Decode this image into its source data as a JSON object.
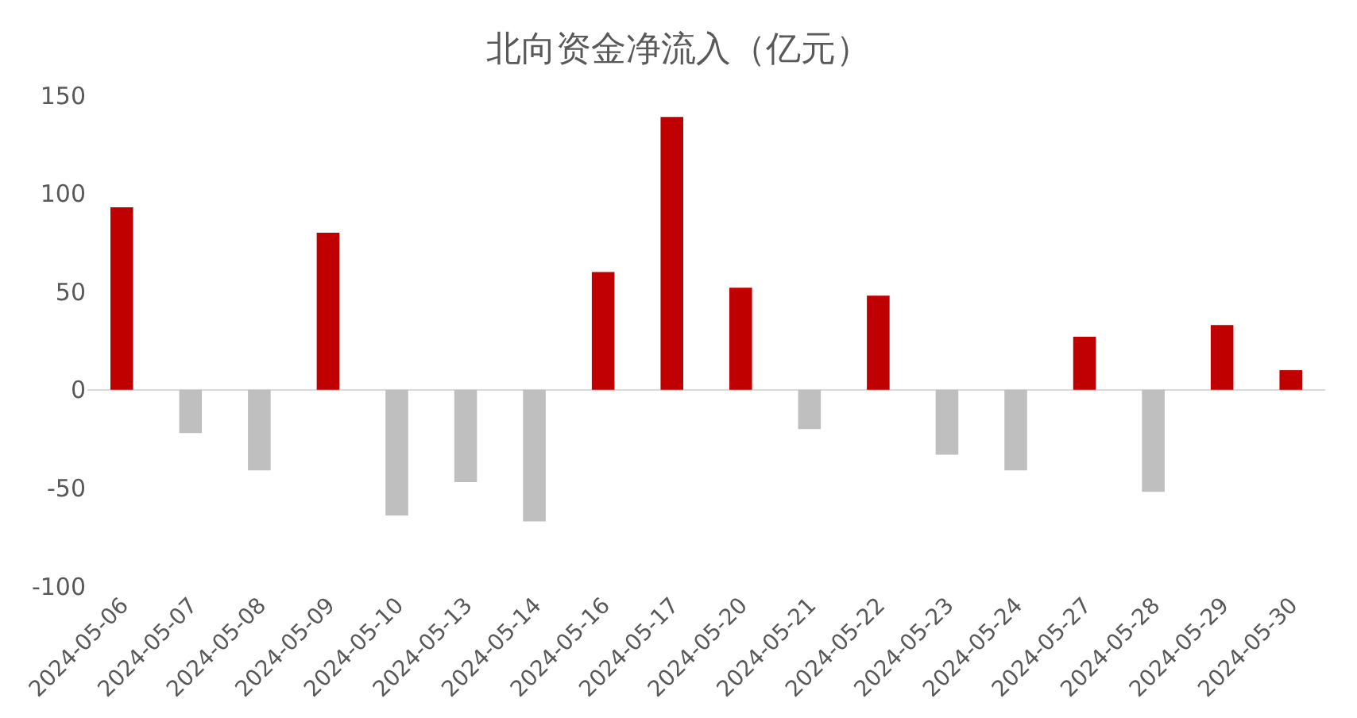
{
  "chart_data": {
    "type": "bar",
    "title": "北向资金净流入（亿元）",
    "categories": [
      "2024-05-06",
      "2024-05-07",
      "2024-05-08",
      "2024-05-09",
      "2024-05-10",
      "2024-05-13",
      "2024-05-14",
      "2024-05-16",
      "2024-05-17",
      "2024-05-20",
      "2024-05-21",
      "2024-05-22",
      "2024-05-23",
      "2024-05-24",
      "2024-05-27",
      "2024-05-28",
      "2024-05-29",
      "2024-05-30"
    ],
    "values": [
      93,
      -22,
      -41,
      80,
      -64,
      -47,
      -67,
      60,
      139,
      52,
      -20,
      48,
      -33,
      -41,
      27,
      -52,
      33,
      10
    ],
    "colors": [
      "#c00000",
      "#bfbfbf",
      "#bfbfbf",
      "#c00000",
      "#bfbfbf",
      "#bfbfbf",
      "#bfbfbf",
      "#c00000",
      "#c00000",
      "#c00000",
      "#bfbfbf",
      "#c00000",
      "#bfbfbf",
      "#bfbfbf",
      "#c00000",
      "#bfbfbf",
      "#c00000",
      "#c00000"
    ],
    "ylim": [
      -100,
      150
    ],
    "yticks": [
      -100,
      -50,
      0,
      50,
      100,
      150
    ]
  }
}
